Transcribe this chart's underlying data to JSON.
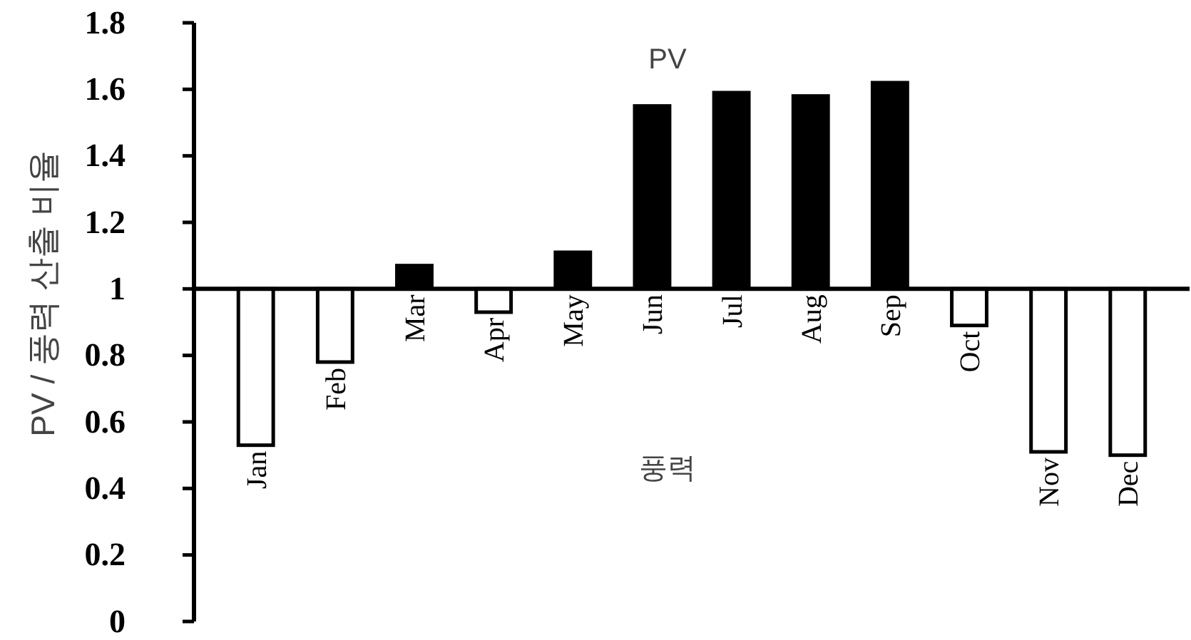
{
  "chart_data": {
    "type": "bar",
    "ylabel": "PV / 풍력 산출 비율",
    "categories": [
      "Jan",
      "Feb",
      "Mar",
      "Apr",
      "May",
      "Jun",
      "Jul",
      "Aug",
      "Sep",
      "Oct",
      "Nov",
      "Dec"
    ],
    "base": [
      1,
      1,
      1,
      1,
      1,
      1,
      1,
      1,
      1,
      1,
      1,
      1
    ],
    "values": [
      -0.47,
      -0.22,
      0.07,
      -0.07,
      0.11,
      0.55,
      0.59,
      0.58,
      0.62,
      -0.11,
      -0.49,
      -0.5
    ],
    "colors": [
      "#ffffff",
      "#ffffff",
      "#000000",
      "#ffffff",
      "#000000",
      "#000000",
      "#000000",
      "#000000",
      "#000000",
      "#ffffff",
      "#ffffff",
      "#ffffff"
    ],
    "ylim": [
      0,
      1.8
    ],
    "yticks": [
      0,
      0.2,
      0.4,
      0.6,
      0.8,
      1,
      1.2,
      1.4,
      1.6,
      1.8
    ],
    "annotations": [
      "PV",
      "풍력"
    ],
    "grid": false
  }
}
